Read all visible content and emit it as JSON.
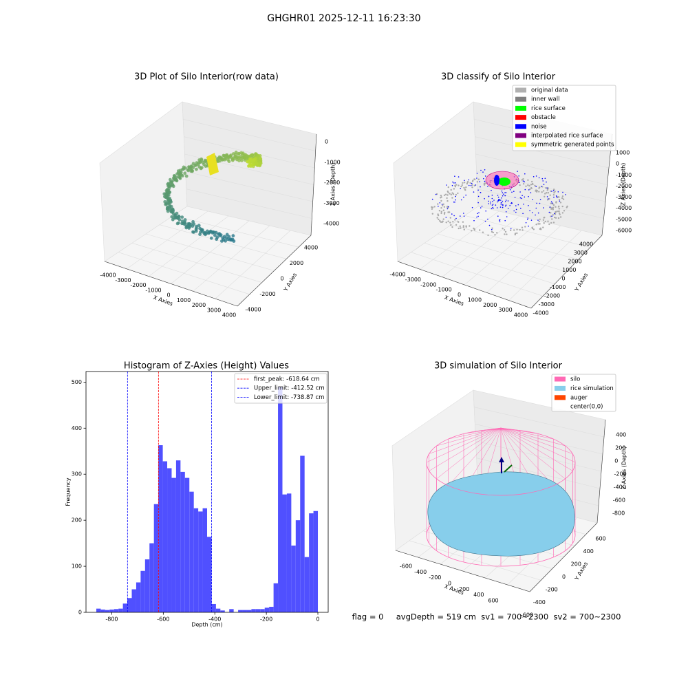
{
  "title": "GHGHR01 2025-12-11 16:23:30",
  "chart_data": [
    {
      "type": "scatter3d",
      "title": "3D Plot of Silo Interior(row data)",
      "xlabel": "X Axies",
      "ylabel": "Y Axies",
      "zlabel": "Z Axies (Depth)",
      "xticks": [
        -4000,
        -3000,
        -2000,
        -1000,
        0,
        1000,
        2000,
        3000,
        4000
      ],
      "yticks": [
        -4000,
        -2000,
        0,
        2000,
        4000
      ],
      "zticks": [
        0,
        -1000,
        -2000,
        -3000,
        -4000
      ]
    },
    {
      "type": "scatter3d",
      "title": "3D classify of Silo Interior",
      "xlabel": "X Axies",
      "ylabel": "Y Axies",
      "zlabel": "Z Axies (Depth)",
      "xticks": [
        -4000,
        -3000,
        -2000,
        -1000,
        0,
        1000,
        2000,
        3000,
        4000
      ],
      "yticks": [
        -4000,
        -3000,
        -2000,
        -1000,
        0,
        1000,
        2000,
        3000,
        4000
      ],
      "zticks": [
        1000,
        0,
        -1000,
        -2000,
        -3000,
        -4000,
        -5000,
        -6000
      ],
      "legend": [
        {
          "name": "original data",
          "color": "#b0b0b0"
        },
        {
          "name": "inner wall",
          "color": "#808080"
        },
        {
          "name": "rice surface",
          "color": "#00ff00"
        },
        {
          "name": "obstacle",
          "color": "#ff0000"
        },
        {
          "name": "noise",
          "color": "#0000ff"
        },
        {
          "name": "interpolated rice surface",
          "color": "#800080"
        },
        {
          "name": "symmetric generated points",
          "color": "#ffff00"
        }
      ]
    },
    {
      "type": "histogram",
      "title": "Histogram of Z-Axies (Height) Values",
      "xlabel": "Depth (cm)",
      "ylabel": "Frequency",
      "color": "#5050ff",
      "bins": [
        -860,
        -842.8,
        -825.6,
        -808.4,
        -791.2,
        -774,
        -756.8,
        -739.6,
        -722.4,
        -705.2,
        -688,
        -670.8,
        -653.6,
        -636.4,
        -619.2,
        -602,
        -584.8,
        -567.6,
        -550.4,
        -533.2,
        -516,
        -498.8,
        -481.6,
        -464.4,
        -447.2,
        -430,
        -412.8,
        -395.6,
        -378.4,
        -361.2,
        -344,
        -326.8,
        -309.6,
        -292.4,
        -275.2,
        -258,
        -240.8,
        -223.6,
        -206.4,
        -189.2,
        -172,
        -154.8,
        -137.6,
        -120.4,
        -103.2,
        -86,
        -68.8,
        -51.6,
        -34.4,
        -17.2,
        0
      ],
      "values": [
        8,
        6,
        5,
        6,
        7,
        8,
        19,
        31,
        50,
        65,
        90,
        115,
        150,
        235,
        363,
        328,
        313,
        292,
        330,
        305,
        292,
        262,
        226,
        219,
        226,
        164,
        18,
        8,
        4,
        0,
        7,
        0,
        5,
        5,
        5,
        7,
        7,
        7,
        10,
        12,
        63,
        490,
        256,
        258,
        145,
        200,
        340,
        120,
        215,
        220
      ],
      "xlim": [
        -900,
        40
      ],
      "ylim": [
        0,
        523
      ],
      "xticks": [
        -800,
        -600,
        -400,
        -200,
        0
      ],
      "yticks": [
        0,
        100,
        200,
        300,
        400,
        500
      ],
      "ref_lines": [
        {
          "value": -618.64,
          "label": "first_peak: -618.64 cm",
          "color": "#ff0000"
        },
        {
          "value": -412.52,
          "label": "Upper_limit: -412.52 cm",
          "color": "#0000ff"
        },
        {
          "value": -738.87,
          "label": "Lower_limit: -738.87 cm",
          "color": "#0000ff"
        }
      ],
      "legend_position": "upper right"
    },
    {
      "type": "surface3d",
      "title": "3D simulation of Silo Interior",
      "xlabel": "X Axies",
      "ylabel": "Y Axies",
      "zlabel": "Z Axies (Depth)",
      "xticks": [
        -600,
        -400,
        -200,
        0,
        200,
        400,
        600
      ],
      "yticks": [
        -600,
        -400,
        -200,
        0,
        200,
        400,
        600
      ],
      "zticks": [
        400,
        200,
        0,
        -200,
        -400,
        -600,
        -800
      ],
      "legend": [
        {
          "name": "silo",
          "color": "#ff69b4"
        },
        {
          "name": "rice simulation",
          "color": "#87ceeb"
        },
        {
          "name": "auger",
          "color": "#ff4500"
        },
        {
          "name": "center(0,0)",
          "color": "#ffffff"
        }
      ]
    }
  ],
  "footer": "flag = 0     avgDepth = 519 cm  sv1 = 700~2300  sv2 = 700~2300"
}
